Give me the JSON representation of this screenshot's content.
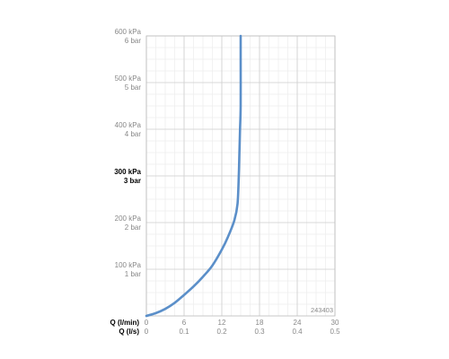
{
  "chart_data": {
    "type": "line",
    "title": "",
    "code": "243403",
    "xlim": [
      0,
      30
    ],
    "ylim": [
      0,
      600
    ],
    "x_ticks": [
      0,
      6,
      12,
      18,
      24,
      30
    ],
    "x_tick_labels_primary": [
      "0",
      "6",
      "12",
      "18",
      "24",
      "30"
    ],
    "x_tick_labels_secondary": [
      "0",
      "0.1",
      "0.2",
      "0.3",
      "0.4",
      "0.5"
    ],
    "x_axis_label_primary": "Q (l/min)",
    "x_axis_label_secondary": "Q (l/s)",
    "y_ticks": [
      100,
      200,
      300,
      400,
      500,
      600
    ],
    "y_tick_labels_kpa": [
      "100 kPa",
      "200 kPa",
      "300 kPa",
      "400 kPa",
      "500 kPa",
      "600 kPa"
    ],
    "y_tick_labels_bar": [
      "1 bar",
      "2 bar",
      "3 bar",
      "4 bar",
      "5 bar",
      "6 bar"
    ],
    "y_highlight_tick": 300,
    "grid": true,
    "minor_grid_x_step": 1.5,
    "minor_grid_y_step": 25,
    "series": [
      {
        "color": "#5b8fc9",
        "x": [
          0,
          1.5,
          3,
          4.5,
          6,
          7.5,
          9,
          10.5,
          12,
          13,
          14,
          14.5,
          14.7,
          14.8,
          14.9,
          15,
          15,
          15
        ],
        "y": [
          0,
          6,
          15,
          28,
          45,
          63,
          84,
          108,
          142,
          170,
          205,
          240,
          300,
          350,
          400,
          450,
          550,
          600
        ]
      }
    ]
  },
  "colors": {
    "grid_major": "#cfcfcf",
    "grid_minor": "#ececec",
    "frame": "#bdbdbd",
    "series": "#5b8fc9"
  }
}
